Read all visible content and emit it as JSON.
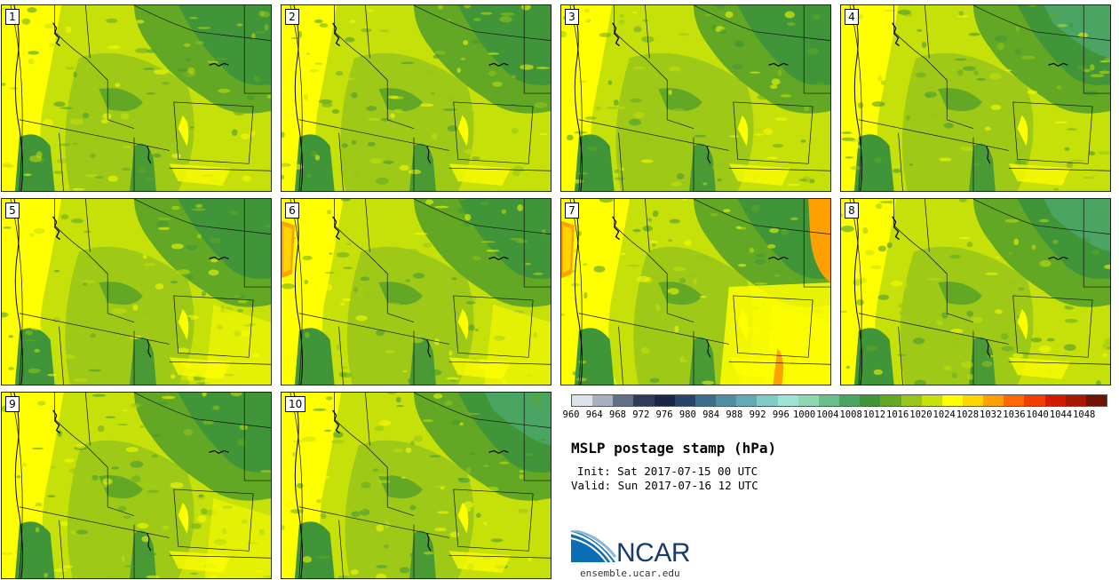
{
  "panels": [
    {
      "label": "1",
      "warm": 0,
      "yellowFrac": 0.55,
      "orange": false
    },
    {
      "label": "2",
      "warm": 0,
      "yellowFrac": 0.45,
      "orange": false
    },
    {
      "label": "3",
      "warm": 0,
      "yellowFrac": 0.35,
      "orange": false
    },
    {
      "label": "4",
      "warm": 0,
      "yellowFrac": 0.5,
      "orange": false
    },
    {
      "label": "5",
      "warm": 1,
      "yellowFrac": 0.55,
      "orange": false
    },
    {
      "label": "6",
      "warm": 1,
      "yellowFrac": 0.6,
      "orange": true
    },
    {
      "label": "7",
      "warm": 2,
      "yellowFrac": 0.75,
      "orange": true
    },
    {
      "label": "8",
      "warm": 0,
      "yellowFrac": 0.45,
      "orange": false
    },
    {
      "label": "9",
      "warm": 1,
      "yellowFrac": 0.6,
      "orange": false
    },
    {
      "label": "10",
      "warm": 0,
      "yellowFrac": 0.55,
      "orange": false
    }
  ],
  "colorbar": {
    "colors": [
      "#dde3ea",
      "#a9b1bf",
      "#636f86",
      "#2f3c59",
      "#182648",
      "#27456a",
      "#3d6f8c",
      "#4e8fa4",
      "#62aab4",
      "#80cbc6",
      "#9de4d4",
      "#8fd6b3",
      "#69bf8c",
      "#4aa462",
      "#3f9537",
      "#62a824",
      "#97c51a",
      "#c6e00a",
      "#ffff00",
      "#ffd500",
      "#ff9f00",
      "#ff6900",
      "#f23d00",
      "#d21a00",
      "#a81800",
      "#6f1400"
    ],
    "ticks": [
      "960",
      "964",
      "968",
      "972",
      "976",
      "980",
      "984",
      "988",
      "992",
      "996",
      "1000",
      "1004",
      "1008",
      "1012",
      "1016",
      "1020",
      "1024",
      "1028",
      "1032",
      "1036",
      "1040",
      "1044",
      "1048"
    ]
  },
  "title": "MSLP postage stamp (hPa)",
  "init": "Init: Sat 2017-07-15 00 UTC",
  "valid": "Valid: Sun 2017-07-16 12 UTC",
  "logo": {
    "text": "NCAR",
    "site": "ensemble.ucar.edu"
  }
}
